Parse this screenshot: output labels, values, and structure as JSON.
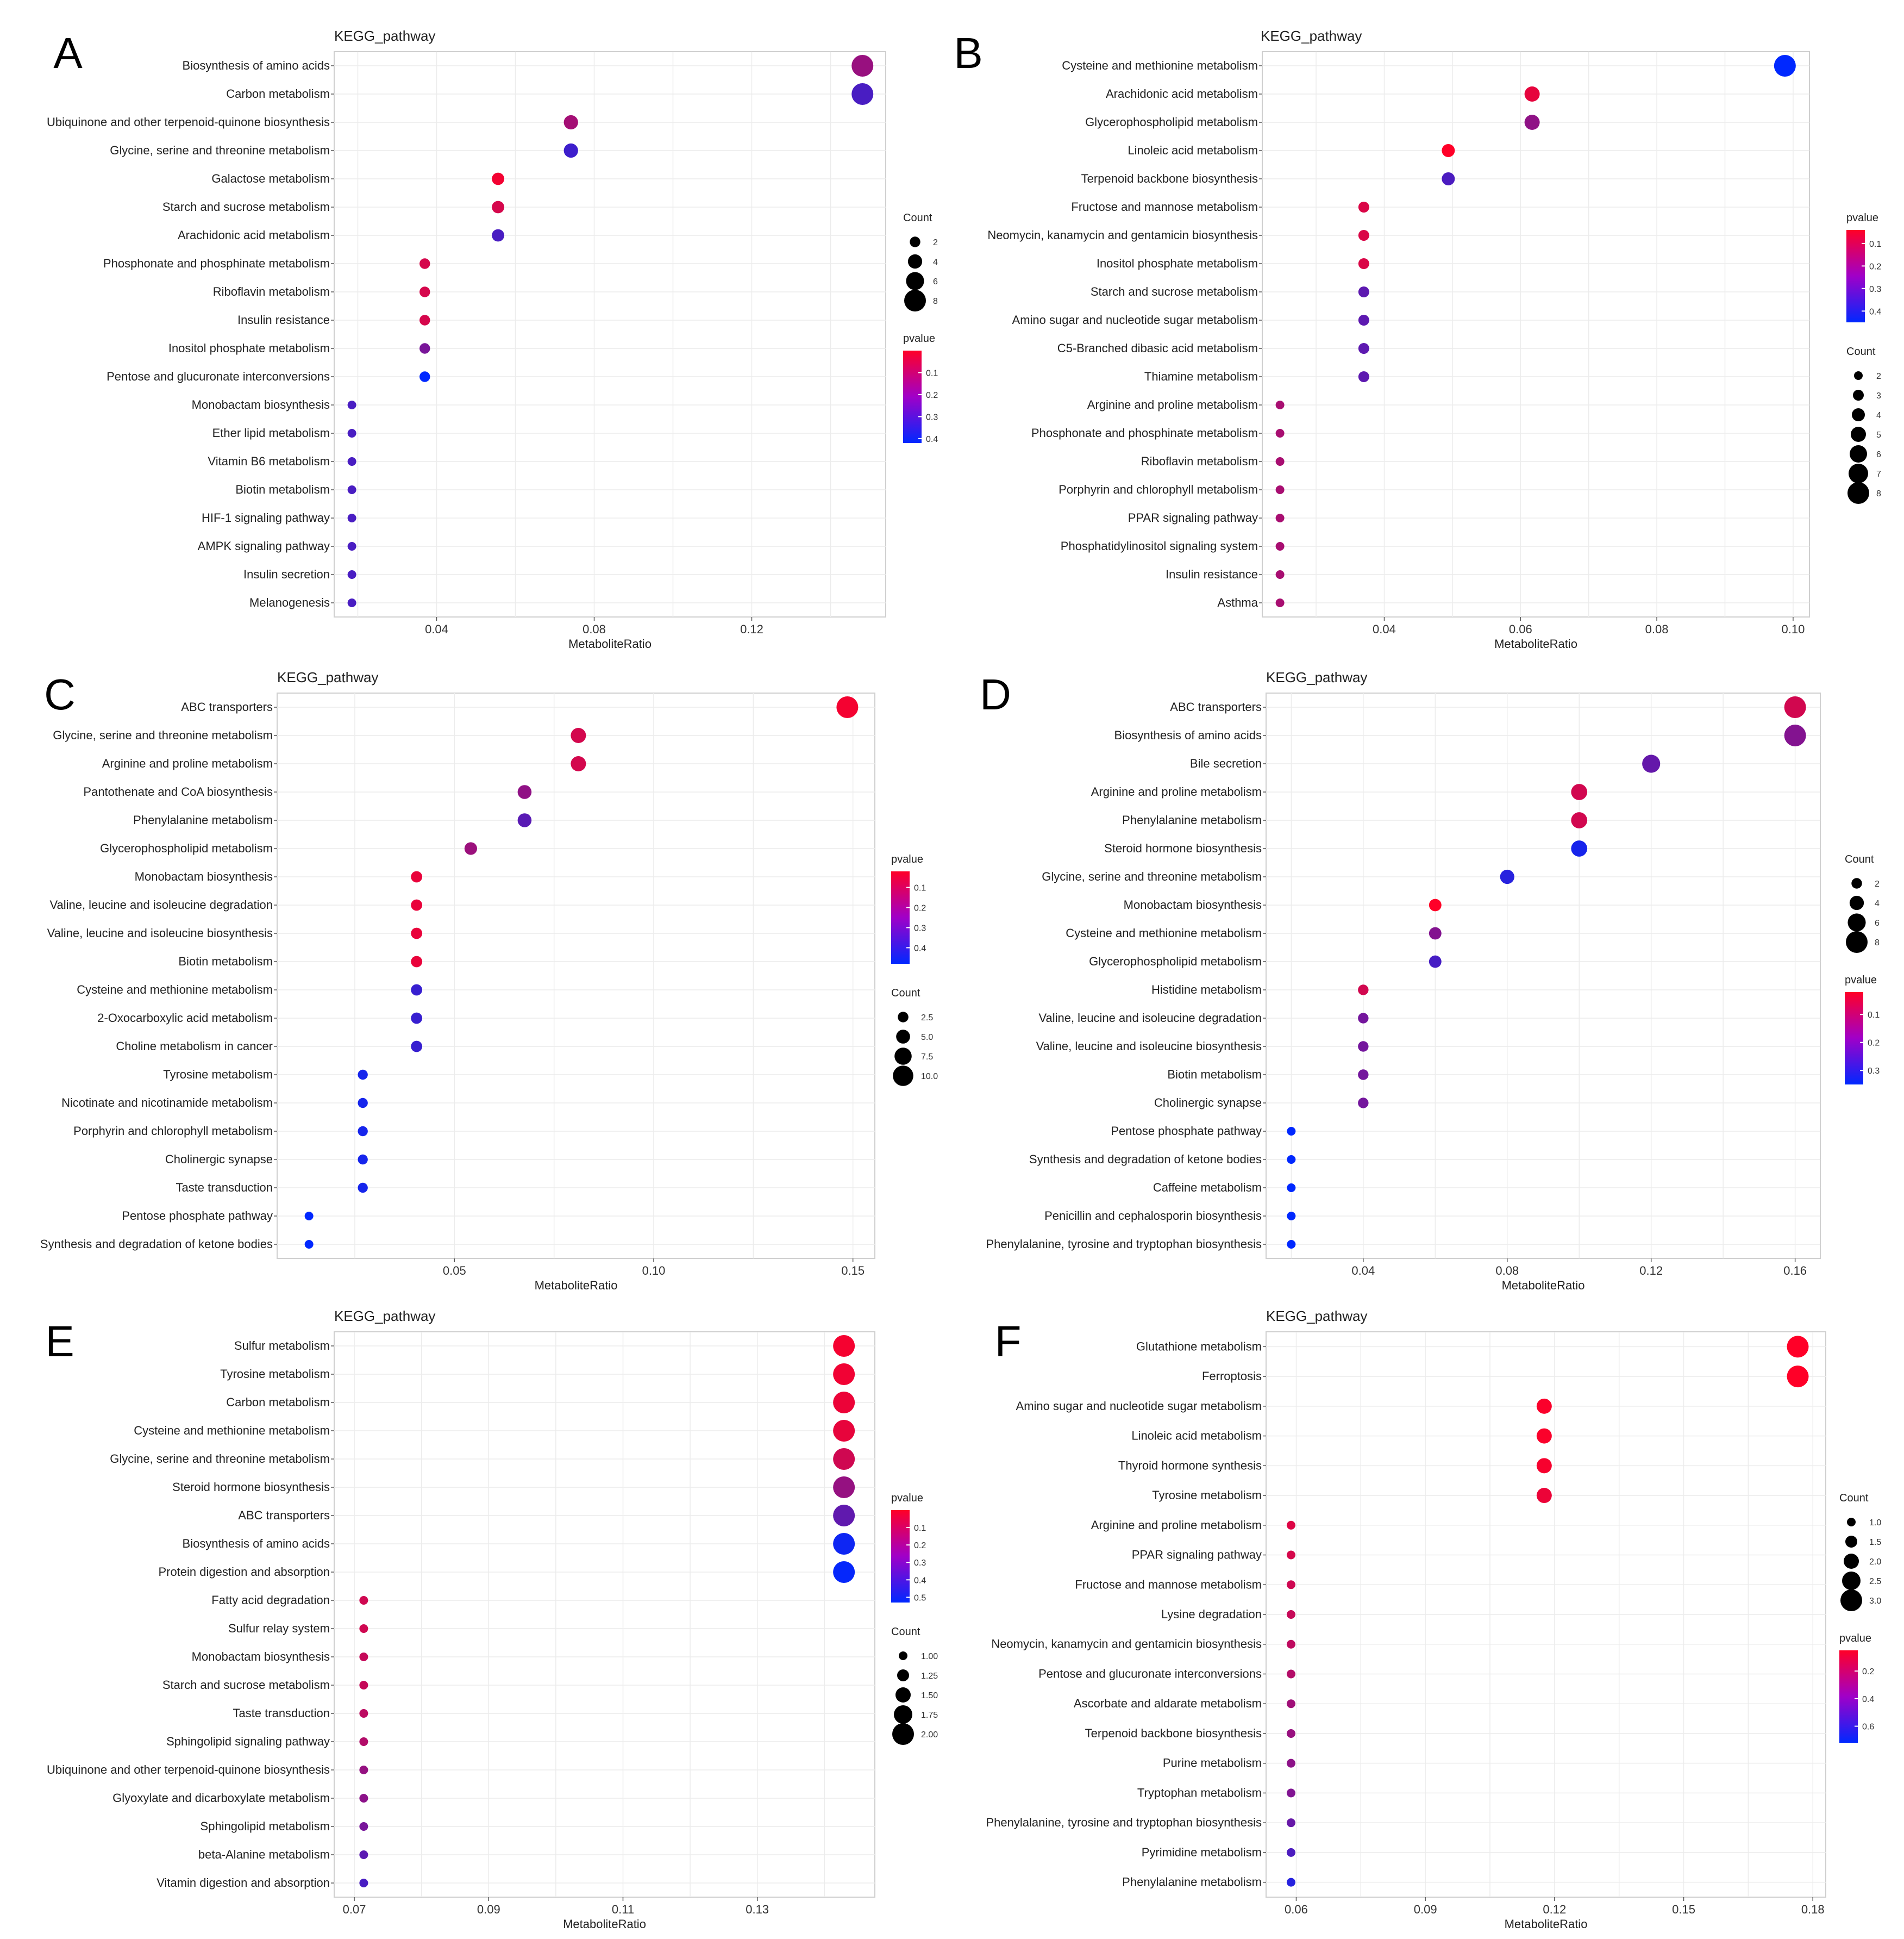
{
  "chart_data": [
    {
      "panel": "A",
      "type": "scatter",
      "title": "KEGG_pathway",
      "xlabel": "MetaboliteRatio",
      "ylabel": "",
      "xlim": [
        0.014,
        0.154
      ],
      "xticks": [
        0.04,
        0.08,
        0.12
      ],
      "xtick_labels": [
        "0.04",
        "0.08",
        "0.12"
      ],
      "grid": true,
      "categories": [
        "Biosynthesis of amino acids",
        "Carbon metabolism",
        "Ubiquinone and other terpenoid-quinone biosynthesis",
        "Glycine, serine and threonine metabolism",
        "Galactose metabolism",
        "Starch and sucrose metabolism",
        "Arachidonic acid metabolism",
        "Phosphonate and phosphinate metabolism",
        "Riboflavin metabolism",
        "Insulin resistance",
        "Inositol phosphate metabolism",
        "Pentose and glucuronate interconversions",
        "Monobactam biosynthesis",
        "Ether lipid metabolism",
        "Vitamin B6 metabolism",
        "Biotin metabolism",
        "HIF-1 signaling pathway",
        "AMPK signaling pathway",
        "Insulin secretion",
        "Melanogenesis"
      ],
      "x": [
        0.1481,
        0.1481,
        0.0741,
        0.0741,
        0.0556,
        0.0556,
        0.0556,
        0.037,
        0.037,
        0.037,
        0.037,
        0.037,
        0.0185,
        0.0185,
        0.0185,
        0.0185,
        0.0185,
        0.0185,
        0.0185,
        0.0185
      ],
      "count": [
        8,
        8,
        4,
        4,
        3,
        3,
        3,
        2,
        2,
        2,
        2,
        2,
        1,
        1,
        1,
        1,
        1,
        1,
        1,
        1
      ],
      "pvalue": [
        0.17,
        0.3,
        0.15,
        0.32,
        0.02,
        0.07,
        0.3,
        0.07,
        0.07,
        0.07,
        0.22,
        0.42,
        0.3,
        0.3,
        0.3,
        0.3,
        0.3,
        0.3,
        0.3,
        0.3
      ],
      "legends": [
        {
          "name": "Count",
          "kind": "size",
          "values": [
            2,
            4,
            6,
            8
          ],
          "labels": [
            "2",
            "4",
            "6",
            "8"
          ]
        },
        {
          "name": "pvalue",
          "kind": "color",
          "range": [
            0.0,
            0.42
          ],
          "ticks": [
            0.1,
            0.2,
            0.3,
            0.4
          ],
          "labels": [
            "0.1",
            "0.2",
            "0.3",
            "0.4"
          ]
        }
      ]
    },
    {
      "panel": "B",
      "type": "scatter",
      "title": "KEGG_pathway",
      "xlabel": "MetaboliteRatio",
      "ylabel": "",
      "xlim": [
        0.0221,
        0.1024
      ],
      "xticks": [
        0.04,
        0.06,
        0.08,
        0.1
      ],
      "xtick_labels": [
        "0.04",
        "0.06",
        "0.08",
        "0.10"
      ],
      "grid": true,
      "categories": [
        "Cysteine and methionine metabolism",
        "Arachidonic acid metabolism",
        "Glycerophospholipid metabolism",
        "Linoleic acid metabolism",
        "Terpenoid backbone biosynthesis",
        "Fructose and mannose metabolism",
        "Neomycin, kanamycin and gentamicin biosynthesis",
        "Inositol phosphate metabolism",
        "Starch and sucrose metabolism",
        "Amino sugar and nucleotide sugar metabolism",
        "C5-Branched dibasic acid metabolism",
        "Thiamine metabolism",
        "Arginine and proline metabolism",
        "Phosphonate and phosphinate metabolism",
        "Riboflavin metabolism",
        "Porphyrin and chlorophyll metabolism",
        "PPAR signaling pathway",
        "Phosphatidylinositol signaling system",
        "Insulin resistance",
        "Asthma"
      ],
      "x": [
        0.0988,
        0.0617,
        0.0617,
        0.0494,
        0.0494,
        0.037,
        0.037,
        0.037,
        0.037,
        0.037,
        0.037,
        0.037,
        0.0247,
        0.0247,
        0.0247,
        0.0247,
        0.0247,
        0.0247,
        0.0247,
        0.0247
      ],
      "count": [
        8,
        5,
        5,
        4,
        4,
        3,
        3,
        3,
        3,
        3,
        3,
        3,
        2,
        2,
        2,
        2,
        2,
        2,
        2,
        2
      ],
      "pvalue": [
        0.45,
        0.08,
        0.22,
        0.02,
        0.33,
        0.1,
        0.1,
        0.1,
        0.3,
        0.3,
        0.3,
        0.3,
        0.18,
        0.18,
        0.18,
        0.18,
        0.18,
        0.18,
        0.18,
        0.18
      ],
      "legends": [
        {
          "name": "pvalue",
          "kind": "color",
          "range": [
            0.04,
            0.45
          ],
          "ticks": [
            0.1,
            0.2,
            0.3,
            0.4
          ],
          "labels": [
            "0.1",
            "0.2",
            "0.3",
            "0.4"
          ]
        },
        {
          "name": "Count",
          "kind": "size",
          "values": [
            2,
            3,
            4,
            5,
            6,
            7,
            8
          ],
          "labels": [
            "2",
            "3",
            "4",
            "5",
            "6",
            "7",
            "8"
          ]
        }
      ]
    },
    {
      "panel": "C",
      "type": "scatter",
      "title": "KEGG_pathway",
      "xlabel": "MetaboliteRatio",
      "ylabel": "",
      "xlim": [
        0.0055,
        0.1555
      ],
      "xticks": [
        0.05,
        0.1,
        0.15
      ],
      "xtick_labels": [
        "0.05",
        "0.10",
        "0.15"
      ],
      "grid": true,
      "categories": [
        "ABC transporters",
        "Glycine, serine and threonine metabolism",
        "Arginine and proline metabolism",
        "Pantothenate and CoA biosynthesis",
        "Phenylalanine metabolism",
        "Glycerophospholipid metabolism",
        "Monobactam biosynthesis",
        "Valine, leucine and isoleucine degradation",
        "Valine, leucine and isoleucine biosynthesis",
        "Biotin metabolism",
        "Cysteine and methionine metabolism",
        "2-Oxocarboxylic acid metabolism",
        "Choline metabolism in cancer",
        "Tyrosine metabolism",
        "Nicotinate and nicotinamide metabolism",
        "Porphyrin and chlorophyll metabolism",
        "Cholinergic synapse",
        "Taste transduction",
        "Pentose phosphate pathway",
        "Synthesis and degradation of ketone bodies"
      ],
      "x": [
        0.1486,
        0.0811,
        0.0811,
        0.0676,
        0.0676,
        0.0541,
        0.0405,
        0.0405,
        0.0405,
        0.0405,
        0.0405,
        0.0405,
        0.0405,
        0.027,
        0.027,
        0.027,
        0.027,
        0.027,
        0.0135,
        0.0135
      ],
      "count": [
        11,
        6,
        6,
        5,
        5,
        4,
        3,
        3,
        3,
        3,
        3,
        3,
        3,
        2,
        2,
        2,
        2,
        2,
        1,
        1
      ],
      "pvalue": [
        0.04,
        0.1,
        0.1,
        0.22,
        0.32,
        0.2,
        0.06,
        0.06,
        0.06,
        0.06,
        0.38,
        0.38,
        0.38,
        0.44,
        0.44,
        0.44,
        0.44,
        0.44,
        0.48,
        0.48
      ],
      "legends": [
        {
          "name": "pvalue",
          "kind": "color",
          "range": [
            0.02,
            0.48
          ],
          "ticks": [
            0.1,
            0.2,
            0.3,
            0.4
          ],
          "labels": [
            "0.1",
            "0.2",
            "0.3",
            "0.4"
          ]
        },
        {
          "name": "Count",
          "kind": "size",
          "values": [
            2.5,
            5.0,
            7.5,
            10.0
          ],
          "labels": [
            "2.5",
            "5.0",
            "7.5",
            "10.0"
          ]
        }
      ]
    },
    {
      "panel": "D",
      "type": "scatter",
      "title": "KEGG_pathway",
      "xlabel": "MetaboliteRatio",
      "ylabel": "",
      "xlim": [
        0.013,
        0.167
      ],
      "xticks": [
        0.04,
        0.08,
        0.12,
        0.16
      ],
      "xtick_labels": [
        "0.04",
        "0.08",
        "0.12",
        "0.16"
      ],
      "grid": true,
      "categories": [
        "ABC transporters",
        "Biosynthesis of amino acids",
        "Bile secretion",
        "Arginine and proline metabolism",
        "Phenylalanine metabolism",
        "Steroid hormone biosynthesis",
        "Glycine, serine and threonine metabolism",
        "Monobactam biosynthesis",
        "Cysteine and methionine metabolism",
        "Glycerophospholipid metabolism",
        "Histidine metabolism",
        "Valine, leucine and isoleucine degradation",
        "Valine, leucine and isoleucine biosynthesis",
        "Biotin metabolism",
        "Cholinergic synapse",
        "Pentose phosphate pathway",
        "Synthesis and degradation of ketone bodies",
        "Caffeine metabolism",
        "Penicillin and cephalosporin biosynthesis",
        "Phenylalanine, tyrosine and tryptophan biosynthesis"
      ],
      "x": [
        0.16,
        0.16,
        0.12,
        0.1,
        0.1,
        0.1,
        0.08,
        0.06,
        0.06,
        0.06,
        0.04,
        0.04,
        0.04,
        0.04,
        0.04,
        0.02,
        0.02,
        0.02,
        0.02,
        0.02
      ],
      "count": [
        8,
        8,
        6,
        5,
        5,
        5,
        4,
        3,
        3,
        3,
        2,
        2,
        2,
        2,
        2,
        1,
        1,
        1,
        1,
        1
      ],
      "pvalue": [
        0.08,
        0.18,
        0.22,
        0.08,
        0.08,
        0.32,
        0.3,
        0.02,
        0.18,
        0.26,
        0.08,
        0.2,
        0.2,
        0.2,
        0.2,
        0.35,
        0.35,
        0.35,
        0.35,
        0.35
      ],
      "legends": [
        {
          "name": "Count",
          "kind": "size",
          "values": [
            2,
            4,
            6,
            8
          ],
          "labels": [
            "2",
            "4",
            "6",
            "8"
          ]
        },
        {
          "name": "pvalue",
          "kind": "color",
          "range": [
            0.02,
            0.35
          ],
          "ticks": [
            0.1,
            0.2,
            0.3
          ],
          "labels": [
            "0.1",
            "0.2",
            "0.3"
          ]
        }
      ]
    },
    {
      "panel": "E",
      "type": "scatter",
      "title": "KEGG_pathway",
      "xlabel": "MetaboliteRatio",
      "ylabel": "",
      "xlim": [
        0.067,
        0.1475
      ],
      "xticks": [
        0.07,
        0.09,
        0.11,
        0.13
      ],
      "xtick_labels": [
        "0.07",
        "0.09",
        "0.11",
        "0.13"
      ],
      "grid": true,
      "categories": [
        "Sulfur metabolism",
        "Tyrosine metabolism",
        "Carbon metabolism",
        "Cysteine and methionine metabolism",
        "Glycine, serine and threonine metabolism",
        "Steroid hormone biosynthesis",
        "ABC transporters",
        "Biosynthesis of amino acids",
        "Protein digestion and absorption",
        "Fatty acid degradation",
        "Sulfur relay system",
        "Monobactam biosynthesis",
        "Starch and sucrose metabolism",
        "Taste transduction",
        "Sphingolipid signaling pathway",
        "Ubiquinone and other terpenoid-quinone biosynthesis",
        "Glyoxylate and dicarboxylate metabolism",
        "Sphingolipid metabolism",
        "beta-Alanine metabolism",
        "Vitamin digestion and absorption"
      ],
      "x": [
        0.1429,
        0.1429,
        0.1429,
        0.1429,
        0.1429,
        0.1429,
        0.1429,
        0.1429,
        0.1429,
        0.0714,
        0.0714,
        0.0714,
        0.0714,
        0.0714,
        0.0714,
        0.0714,
        0.0714,
        0.0714,
        0.0714,
        0.0714
      ],
      "count": [
        2,
        2,
        2,
        2,
        2,
        2,
        2,
        2,
        2,
        1,
        1,
        1,
        1,
        1,
        1,
        1,
        1,
        1,
        1,
        1
      ],
      "pvalue": [
        0.02,
        0.03,
        0.04,
        0.05,
        0.1,
        0.22,
        0.33,
        0.5,
        0.52,
        0.1,
        0.1,
        0.12,
        0.12,
        0.14,
        0.16,
        0.22,
        0.24,
        0.28,
        0.34,
        0.38
      ],
      "legends": [
        {
          "name": "pvalue",
          "kind": "color",
          "range": [
            0.0,
            0.53
          ],
          "ticks": [
            0.1,
            0.2,
            0.3,
            0.4,
            0.5
          ],
          "labels": [
            "0.1",
            "0.2",
            "0.3",
            "0.4",
            "0.5"
          ]
        },
        {
          "name": "Count",
          "kind": "size",
          "values": [
            1.0,
            1.25,
            1.5,
            1.75,
            2.0
          ],
          "labels": [
            "1.00",
            "1.25",
            "1.50",
            "1.75",
            "2.00"
          ]
        }
      ]
    },
    {
      "panel": "F",
      "type": "scatter",
      "title": "KEGG_pathway",
      "xlabel": "MetaboliteRatio",
      "ylabel": "",
      "xlim": [
        0.053,
        0.183
      ],
      "xticks": [
        0.06,
        0.09,
        0.12,
        0.15,
        0.18
      ],
      "xtick_labels": [
        "0.06",
        "0.09",
        "0.12",
        "0.15",
        "0.18"
      ],
      "grid": true,
      "categories": [
        "Glutathione metabolism",
        "Ferroptosis",
        "Amino sugar and nucleotide sugar metabolism",
        "Linoleic acid metabolism",
        "Thyroid hormone synthesis",
        "Tyrosine metabolism",
        "Arginine and proline metabolism",
        "PPAR signaling pathway",
        "Fructose and mannose metabolism",
        "Lysine degradation",
        "Neomycin, kanamycin and gentamicin biosynthesis",
        "Pentose and glucuronate interconversions",
        "Ascorbate and aldarate metabolism",
        "Terpenoid backbone biosynthesis",
        "Purine metabolism",
        "Tryptophan metabolism",
        "Phenylalanine, tyrosine and tryptophan biosynthesis",
        "Pyrimidine metabolism",
        "Phenylalanine metabolism"
      ],
      "x": [
        0.1765,
        0.1765,
        0.1176,
        0.1176,
        0.1176,
        0.1176,
        0.0588,
        0.0588,
        0.0588,
        0.0588,
        0.0588,
        0.0588,
        0.0588,
        0.0588,
        0.0588,
        0.0588,
        0.0588,
        0.0588,
        0.0588
      ],
      "count": [
        3,
        3,
        2,
        2,
        2,
        2,
        1,
        1,
        1,
        1,
        1,
        1,
        1,
        1,
        1,
        1,
        1,
        1,
        1
      ],
      "pvalue": [
        0.05,
        0.05,
        0.06,
        0.06,
        0.07,
        0.1,
        0.14,
        0.16,
        0.18,
        0.2,
        0.22,
        0.25,
        0.3,
        0.32,
        0.35,
        0.38,
        0.45,
        0.52,
        0.62
      ],
      "legends": [
        {
          "name": "Count",
          "kind": "size",
          "values": [
            1.0,
            1.5,
            2.0,
            2.5,
            3.0
          ],
          "labels": [
            "1.0",
            "1.5",
            "2.0",
            "2.5",
            "3.0"
          ]
        },
        {
          "name": "pvalue",
          "kind": "color",
          "range": [
            0.05,
            0.72
          ],
          "ticks": [
            0.2,
            0.4,
            0.6
          ],
          "labels": [
            "0.2",
            "0.4",
            "0.6"
          ]
        }
      ]
    }
  ]
}
